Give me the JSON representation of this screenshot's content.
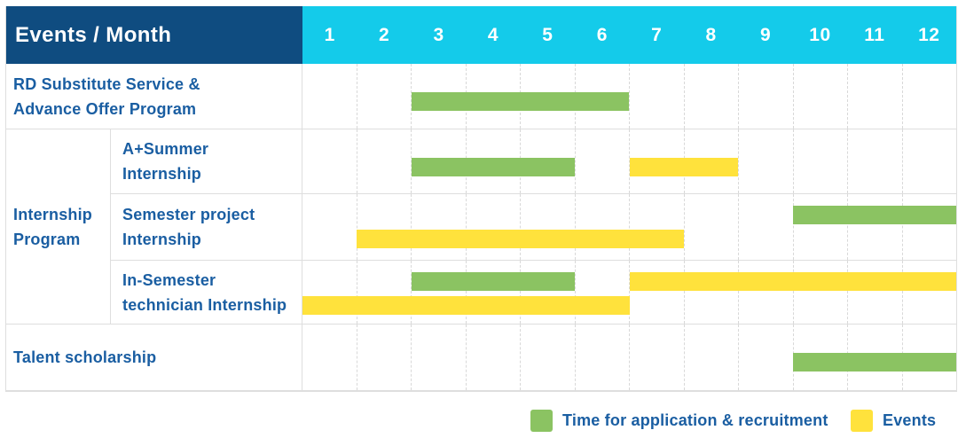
{
  "colors": {
    "header_bg": "#0F4C80",
    "month_header_bg": "#14CBEA",
    "bar_green": "#8BC362",
    "bar_yellow": "#FFE23C",
    "label_text": "#1A5EA2",
    "grid_solid": "#DEDEDE",
    "grid_dashed": "#D8D8D8"
  },
  "chart_data": {
    "type": "gantt",
    "title": "Events / Month",
    "x": {
      "unit": "month",
      "range": [
        1,
        12
      ],
      "ticks": [
        1,
        2,
        3,
        4,
        5,
        6,
        7,
        8,
        9,
        10,
        11,
        12
      ]
    },
    "legend": [
      {
        "key": "application",
        "label": "Time for application & recruitment",
        "color": "#8BC362"
      },
      {
        "key": "events",
        "label": "Events",
        "color": "#FFE23C"
      }
    ],
    "rows": [
      {
        "group": "",
        "label": "RD Substitute Service &\nAdvance Offer Program",
        "bars": [
          {
            "series": "application",
            "start_month": 3,
            "end_month": 6,
            "line": "single"
          }
        ]
      },
      {
        "group": "Internship Program",
        "label": "A+Summer\nInternship",
        "bars": [
          {
            "series": "application",
            "start_month": 3,
            "end_month": 5,
            "line": "single"
          },
          {
            "series": "events",
            "start_month": 7,
            "end_month": 8,
            "line": "single"
          }
        ]
      },
      {
        "group": "Internship Program",
        "label": "Semester project\nInternship",
        "bars": [
          {
            "series": "application",
            "start_month": 10,
            "end_month": 12,
            "line": "upper"
          },
          {
            "series": "events",
            "start_month": 2,
            "end_month": 7,
            "line": "lower"
          }
        ]
      },
      {
        "group": "Internship Program",
        "label": "In-Semester\ntechnician Internship",
        "bars": [
          {
            "series": "application",
            "start_month": 3,
            "end_month": 5,
            "line": "upper"
          },
          {
            "series": "events",
            "start_month": 7,
            "end_month": 12,
            "line": "upper"
          },
          {
            "series": "events",
            "start_month": 1,
            "end_month": 6,
            "line": "lower"
          }
        ]
      },
      {
        "group": "",
        "label": "Talent scholarship",
        "bars": [
          {
            "series": "application",
            "start_month": 10,
            "end_month": 12,
            "line": "single"
          }
        ]
      }
    ]
  }
}
